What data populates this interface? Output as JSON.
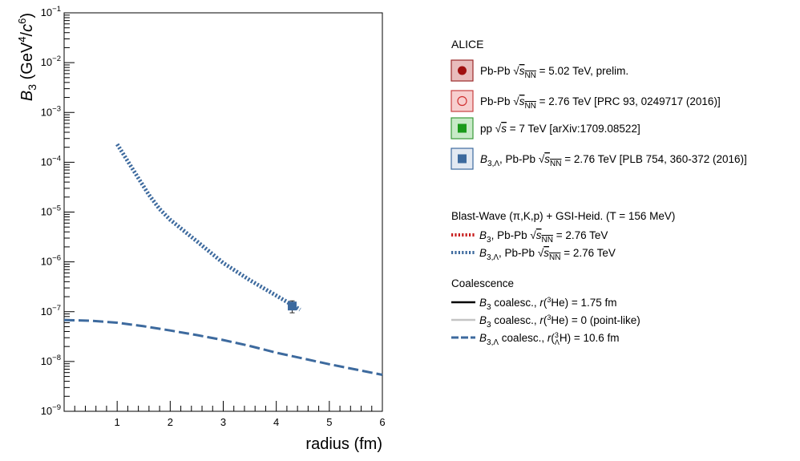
{
  "chart_data": {
    "type": "line",
    "title": "",
    "xlabel": "radius (fm)",
    "ylabel": "B3 (GeV4/c6)",
    "xlim": [
      0,
      6
    ],
    "ylim": [
      1e-09,
      0.1
    ],
    "yscale": "log",
    "x_ticks": [
      1,
      2,
      3,
      4,
      5,
      6
    ],
    "y_ticks": [
      {
        "value": 1e-09,
        "exp": "−9"
      },
      {
        "value": 1e-08,
        "exp": "−8"
      },
      {
        "value": 1e-07,
        "exp": "−7"
      },
      {
        "value": 1e-06,
        "exp": "−6"
      },
      {
        "value": 1e-05,
        "exp": "−5"
      },
      {
        "value": 0.0001,
        "exp": "−4"
      },
      {
        "value": 0.001,
        "exp": "−3"
      },
      {
        "value": 0.01,
        "exp": "−2"
      },
      {
        "value": 0.1,
        "exp": "−1"
      }
    ],
    "grid": false,
    "legend_position": "right",
    "series": [
      {
        "kind": "blast-wave-lambda",
        "color": "#3d6a9e",
        "style": "dotted",
        "x": [
          1.0,
          1.2,
          1.4,
          1.6,
          1.8,
          2.0,
          2.5,
          3.0,
          3.5,
          4.0,
          4.45
        ],
        "y": [
          0.00023,
          0.000105,
          4.8e-05,
          2.2e-05,
          1.15e-05,
          7e-06,
          2.6e-06,
          9.5e-07,
          4.3e-07,
          2.1e-07,
          1.1e-07
        ]
      },
      {
        "kind": "coalescence-lambda",
        "color": "#3d6a9e",
        "style": "dashed",
        "x": [
          0,
          0.5,
          1.0,
          1.5,
          2.0,
          2.5,
          3.0,
          3.5,
          4.0,
          4.5,
          5.0,
          5.5,
          6.0
        ],
        "y": [
          6.8e-08,
          6.6e-08,
          6e-08,
          5.1e-08,
          4.2e-08,
          3.4e-08,
          2.7e-08,
          2.05e-08,
          1.5e-08,
          1.15e-08,
          8.8e-09,
          6.9e-09,
          5.4e-09
        ]
      }
    ],
    "points": [
      {
        "name": "B3,Λ Pb-Pb 2.76 TeV",
        "x": 4.3,
        "y": 1.3e-07,
        "err_low": 9.5e-08,
        "err_high": 1.65e-07,
        "color": "#3d6a9e"
      }
    ]
  },
  "legend": {
    "experiment": "ALICE",
    "entries": [
      {
        "pre": "Pb-Pb ",
        "sqrt": "s",
        "sub": "NN",
        "post": " = 5.02 TeV, prelim.",
        "box_fill": "#e8bcbc",
        "box_stroke": "#9b2a2a",
        "marker": "filled-circle",
        "marker_color": "#a01010"
      },
      {
        "pre": "Pb-Pb ",
        "sqrt": "s",
        "sub": "NN",
        "post": " = 2.76 TeV [PRC 93, 0249717 (2016)]",
        "box_fill": "#f7cfcf",
        "box_stroke": "#c84040",
        "marker": "open-circle",
        "marker_color": "#d03030"
      },
      {
        "pre": "pp ",
        "sqrt": "s",
        "sub": "",
        "post": " = 7 TeV [arXiv:1709.08522]",
        "box_fill": "#c8eac8",
        "box_stroke": "#3a9a3a",
        "marker": "filled-square",
        "marker_color": "#1a9a1a"
      },
      {
        "pre": "B3,Λ, Pb-Pb ",
        "sqrt": "s",
        "sub": "NN",
        "post": " = 2.76 TeV [PLB 754, 360-372 (2016)]",
        "box_fill": "#e3e9f2",
        "box_stroke": "#3d6a9e",
        "marker": "filled-square",
        "marker_color": "#3d6a9e"
      }
    ],
    "blast_wave": {
      "heading": "Blast-Wave (π,K,p) + GSI-Heid. (T = 156 MeV)",
      "entries": [
        {
          "pre": "B3, Pb-Pb ",
          "sqrt": "s",
          "sub": "NN",
          "post": " = 2.76 TeV",
          "color": "#c81e1e"
        },
        {
          "pre": "B3,Λ, Pb-Pb ",
          "sqrt": "s",
          "sub": "NN",
          "post": " = 2.76 TeV",
          "color": "#3d6a9e"
        }
      ]
    },
    "coalescence": {
      "heading": "Coalescence",
      "entries": [
        {
          "text": "B3 coalesc., r(3He) = 1.75 fm",
          "color": "#000000",
          "style": "solid"
        },
        {
          "text": "B3 coalesc., r(3He) = 0 (point-like)",
          "color": "#c4c4c4",
          "style": "solid"
        },
        {
          "text": "B3,Λ coalesc., r(3ΛH) = 10.6 fm",
          "color": "#3d6a9e",
          "style": "dashed"
        }
      ]
    }
  }
}
